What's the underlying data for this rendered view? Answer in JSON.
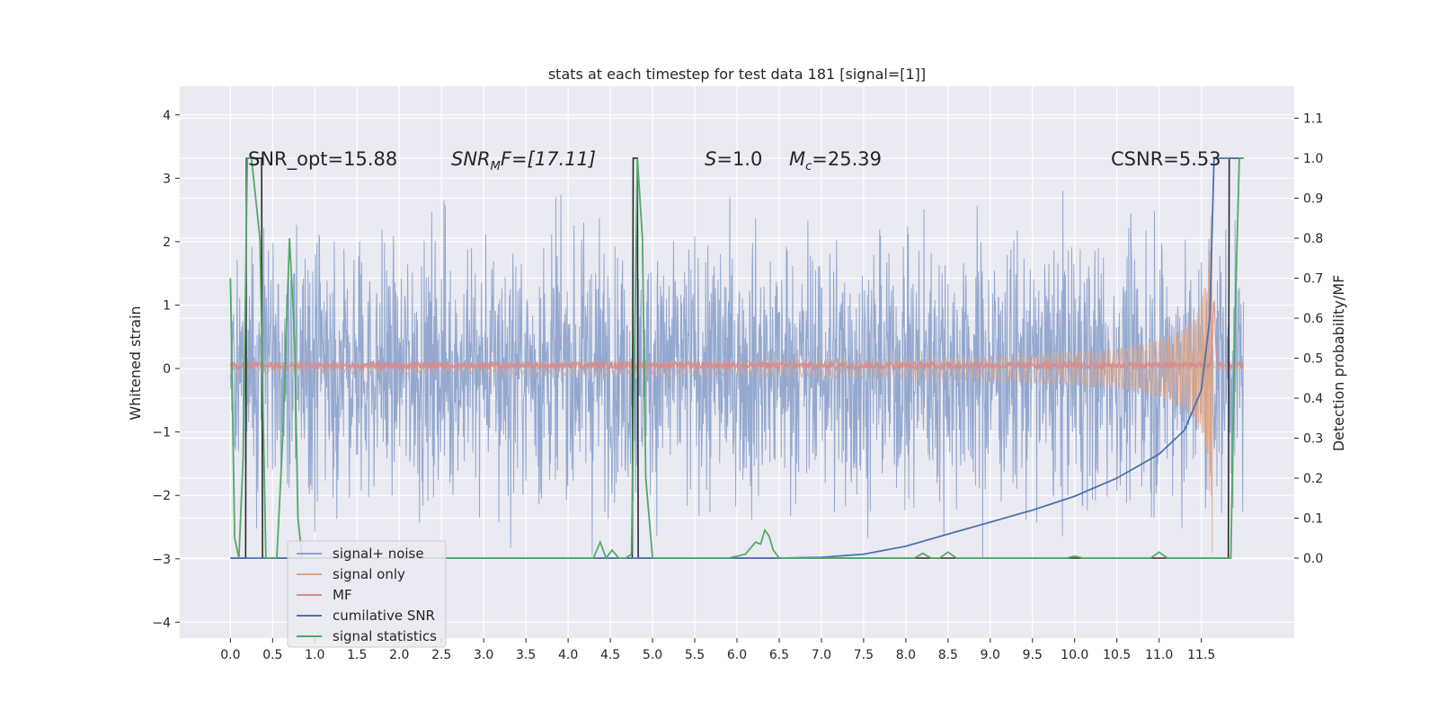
{
  "chart_data": {
    "type": "line",
    "title": "stats at each timestep for test data 181 [signal=[1]]",
    "xlabel": "",
    "ylabel": "Whitened strain",
    "ylabel_right": "Detection probability/MF",
    "xlim": [
      -0.6,
      12.6
    ],
    "ylim": [
      -4.25,
      4.45
    ],
    "ylim_right": [
      -0.2,
      1.18
    ],
    "x_ticks": [
      "0.0",
      "0.5",
      "1.0",
      "1.5",
      "2.0",
      "2.5",
      "3.0",
      "3.5",
      "4.0",
      "4.5",
      "5.0",
      "5.5",
      "6.0",
      "6.5",
      "7.0",
      "7.5",
      "8.0",
      "8.5",
      "9.0",
      "9.5",
      "10.0",
      "10.5",
      "11.0",
      "11.5"
    ],
    "y_ticks": [
      "4",
      "3",
      "2",
      "1",
      "0",
      "−1",
      "−2",
      "−3",
      "−4"
    ],
    "y_ticks_right": [
      "1.1",
      "1.0",
      "0.9",
      "0.8",
      "0.7",
      "0.6",
      "0.5",
      "0.4",
      "0.3",
      "0.2",
      "0.1",
      "0.0"
    ],
    "grid": true,
    "legend_position": "lower-left",
    "annotations": [
      {
        "text": "SNR_opt=15.88"
      },
      {
        "pre": "SNR",
        "sub": "M",
        "post": "F=[17.11]"
      },
      {
        "pre": "S",
        "post": "=1.0"
      },
      {
        "pre": "M",
        "sub": "c",
        "post": "=25.39"
      },
      {
        "text": "CSNR=5.53"
      }
    ],
    "series": [
      {
        "name": "signal+ noise",
        "color": "#8fa4cc",
        "axis": "left",
        "kind": "noise",
        "x_range": [
          0.0,
          12.0
        ],
        "amplitude_rms": 1.0
      },
      {
        "name": "signal only",
        "color": "#e0a685",
        "axis": "left",
        "kind": "chirp",
        "x_range": [
          0.0,
          12.0
        ],
        "peak_time": 11.65,
        "peak_amplitude": 3.0
      },
      {
        "name": "MF",
        "color": "#d88a8a",
        "axis": "left",
        "kind": "mf",
        "x_range": [
          0.0,
          12.0
        ],
        "baseline": 0.05,
        "peak_x": 11.65,
        "peak_y": 1.0
      },
      {
        "name": "cumilative SNR",
        "color": "#4c72b0",
        "axis": "right",
        "x": [
          0.0,
          6.5,
          7.0,
          7.5,
          8.0,
          8.5,
          9.0,
          9.5,
          10.0,
          10.5,
          11.0,
          11.3,
          11.5,
          11.6,
          11.65,
          11.7,
          12.0
        ],
        "y": [
          0.0,
          0.0,
          0.002,
          0.01,
          0.03,
          0.06,
          0.09,
          0.12,
          0.155,
          0.2,
          0.26,
          0.32,
          0.42,
          0.6,
          1.0,
          1.0,
          1.0
        ]
      },
      {
        "name": "signal statistics",
        "color": "#55a868",
        "axis": "right",
        "x": [
          0.0,
          0.05,
          0.1,
          0.15,
          0.2,
          0.25,
          0.35,
          0.42,
          0.5,
          0.55,
          0.62,
          0.7,
          0.76,
          0.8,
          0.85,
          4.3,
          4.38,
          4.45,
          4.52,
          4.6,
          4.68,
          4.75,
          4.82,
          4.88,
          4.92,
          5.0,
          5.05,
          5.9,
          6.1,
          6.22,
          6.28,
          6.33,
          6.38,
          6.43,
          6.5,
          6.6,
          8.1,
          8.2,
          8.3,
          8.4,
          8.5,
          8.6,
          9.9,
          10.0,
          10.1,
          10.9,
          11.0,
          11.1,
          11.85,
          11.9,
          11.95,
          12.0
        ],
        "y": [
          0.7,
          0.05,
          0.0,
          0.25,
          1.0,
          1.0,
          0.8,
          0.0,
          0.0,
          0.0,
          0.3,
          0.8,
          0.55,
          0.1,
          0.0,
          0.0,
          0.04,
          0.0,
          0.02,
          0.0,
          0.0,
          0.01,
          1.0,
          0.8,
          0.2,
          0.0,
          0.0,
          0.0,
          0.01,
          0.04,
          0.035,
          0.07,
          0.055,
          0.02,
          0.0,
          0.0,
          0.0,
          0.012,
          0.0,
          0.0,
          0.015,
          0.0,
          0.0,
          0.005,
          0.0,
          0.0,
          0.015,
          0.0,
          0.0,
          0.6,
          1.0,
          1.0
        ]
      },
      {
        "name": "",
        "color": "#2b2b2b",
        "axis": "right",
        "kind": "indicator",
        "x": [
          0.0,
          0.18,
          0.19,
          0.37,
          0.38,
          4.76,
          4.77,
          4.82,
          4.83,
          11.82,
          11.83,
          12.0
        ],
        "y": [
          0.0,
          0.0,
          1.0,
          1.0,
          0.0,
          0.0,
          1.0,
          1.0,
          0.0,
          0.0,
          1.0,
          1.0
        ]
      }
    ]
  }
}
